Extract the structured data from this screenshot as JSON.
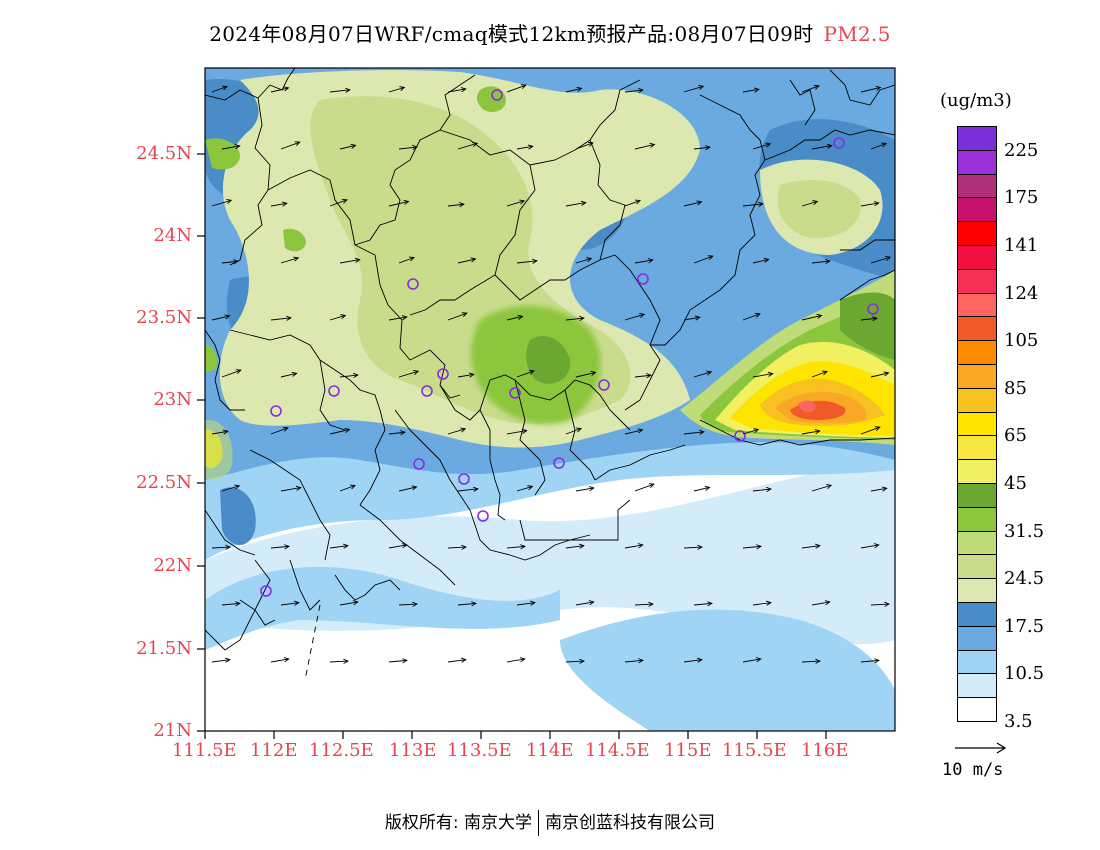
{
  "title": {
    "text": "2024年08月07日WRF/cmaq模式12km预报产品:08月07日09时",
    "variable": "PM2.5"
  },
  "axes": {
    "y_labels": [
      "24.5N",
      "24N",
      "23.5N",
      "23N",
      "22.5N",
      "22N",
      "21.5N",
      "21N"
    ],
    "x_labels": [
      "111.5E",
      "112E",
      "112.5E",
      "113E",
      "113.5E",
      "114E",
      "114.5E",
      "115E",
      "115.5E",
      "116E"
    ]
  },
  "colorbar": {
    "unit": "(ug/m3)",
    "colors": [
      "#7b2fd6",
      "#9b30d8",
      "#b0307a",
      "#c8106e",
      "#ff0000",
      "#f21040",
      "#f53058",
      "#ff6464",
      "#f05a28",
      "#ff8c00",
      "#f8a824",
      "#f8c020",
      "#ffe400",
      "#f7e640",
      "#f0f060",
      "#6aa832",
      "#8cc63c",
      "#c0dc78",
      "#c8dc8c",
      "#dce8b0",
      "#4a8cc8",
      "#6aaae0",
      "#a0d4f4",
      "#d4ecfa",
      "#ffffff"
    ],
    "labels": [
      "225",
      "175",
      "141",
      "124",
      "105",
      "85",
      "65",
      "45",
      "31.5",
      "24.5",
      "17.5",
      "10.5",
      "3.5"
    ]
  },
  "reference_vector": {
    "label": "10 m/s"
  },
  "footer": {
    "left": "版权所有: 南京大学",
    "right": "南京创蓝科技有限公司"
  },
  "colors": {
    "accent_label": "#e8444f"
  }
}
